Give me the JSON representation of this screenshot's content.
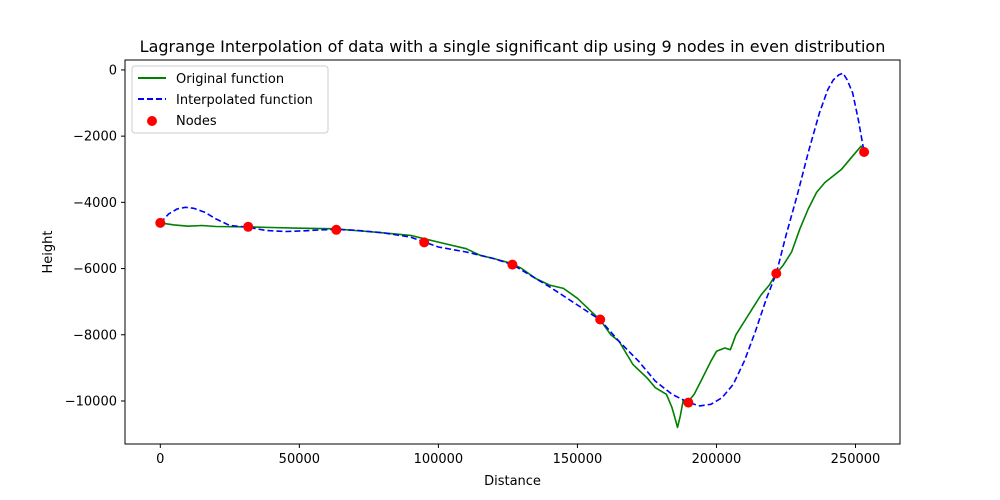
{
  "chart_data": {
    "type": "line",
    "title": "Lagrange Interpolation of data with a single significant dip using 9 nodes in even distribution",
    "xlabel": "Distance",
    "ylabel": "Height",
    "xlim": [
      -12700,
      266000
    ],
    "ylim": [
      -11300,
      300
    ],
    "xticks": [
      0,
      50000,
      100000,
      150000,
      200000,
      250000
    ],
    "xtick_labels": [
      "0",
      "50000",
      "100000",
      "150000",
      "200000",
      "250000"
    ],
    "yticks": [
      0,
      -2000,
      -4000,
      -6000,
      -8000,
      -10000
    ],
    "ytick_labels": [
      "0",
      "−2000",
      "−4000",
      "−6000",
      "−8000",
      "−10000"
    ],
    "grid": false,
    "legend": {
      "position": "top-left",
      "entries": [
        "Original function",
        "Interpolated function",
        "Nodes"
      ]
    },
    "colors": {
      "original": "#008000",
      "interpolated": "#0000ff",
      "nodes": "#ff0000"
    },
    "series": [
      {
        "name": "Original function",
        "style": "solid",
        "x": [
          0,
          5000,
          10000,
          15000,
          20000,
          30000,
          40000,
          50000,
          63000,
          70000,
          80000,
          90000,
          95000,
          100000,
          110000,
          115000,
          120000,
          126500,
          130000,
          135000,
          140000,
          145000,
          150000,
          155000,
          158200,
          162000,
          165000,
          170000,
          175000,
          178000,
          182000,
          184000,
          185000,
          186000,
          187000,
          188000,
          189000,
          190000,
          192000,
          195000,
          198000,
          200000,
          203000,
          205000,
          207000,
          210000,
          213000,
          216000,
          219000,
          221500,
          224000,
          227000,
          230000,
          233000,
          236000,
          239000,
          242000,
          245000,
          248000,
          250000,
          252000,
          253000
        ],
        "y": [
          -4620,
          -4680,
          -4720,
          -4700,
          -4730,
          -4740,
          -4760,
          -4780,
          -4800,
          -4850,
          -4920,
          -5000,
          -5100,
          -5200,
          -5400,
          -5600,
          -5700,
          -5850,
          -6000,
          -6300,
          -6500,
          -6600,
          -6900,
          -7300,
          -7550,
          -8000,
          -8200,
          -8900,
          -9300,
          -9600,
          -9800,
          -10200,
          -10500,
          -10800,
          -10450,
          -10000,
          -10100,
          -10000,
          -9800,
          -9300,
          -8800,
          -8500,
          -8400,
          -8450,
          -8000,
          -7600,
          -7200,
          -6800,
          -6500,
          -6150,
          -5900,
          -5500,
          -4800,
          -4200,
          -3700,
          -3400,
          -3200,
          -3000,
          -2700,
          -2500,
          -2300,
          -2450
        ]
      },
      {
        "name": "Interpolated function",
        "style": "dashed",
        "x": [
          0,
          3000,
          6000,
          9000,
          12000,
          16000,
          20000,
          25000,
          31600,
          38000,
          45000,
          52000,
          58000,
          63300,
          70000,
          80000,
          90000,
          95000,
          100000,
          110000,
          120000,
          126600,
          132000,
          140000,
          150000,
          158200,
          165000,
          172000,
          178000,
          184000,
          190000,
          194000,
          198000,
          202000,
          206000,
          210000,
          214000,
          218000,
          221500,
          225000,
          229000,
          233000,
          237000,
          240000,
          242000,
          244000,
          245500,
          247000,
          249000,
          251000,
          253000
        ],
        "y": [
          -4620,
          -4350,
          -4200,
          -4150,
          -4180,
          -4300,
          -4500,
          -4700,
          -4750,
          -4850,
          -4880,
          -4860,
          -4830,
          -4820,
          -4840,
          -4920,
          -5050,
          -5200,
          -5350,
          -5500,
          -5700,
          -5880,
          -6150,
          -6550,
          -7100,
          -7550,
          -8200,
          -8800,
          -9400,
          -9800,
          -10050,
          -10150,
          -10100,
          -9900,
          -9500,
          -8800,
          -7900,
          -6900,
          -6150,
          -5000,
          -3800,
          -2500,
          -1300,
          -600,
          -300,
          -150,
          -100,
          -300,
          -700,
          -1500,
          -2450
        ]
      }
    ],
    "nodes": {
      "name": "Nodes",
      "x": [
        0,
        31600,
        63300,
        94900,
        126600,
        158200,
        189900,
        221500,
        253100
      ],
      "y": [
        -4620,
        -4740,
        -4830,
        -5210,
        -5880,
        -7540,
        -10050,
        -6150,
        -2480
      ]
    }
  }
}
